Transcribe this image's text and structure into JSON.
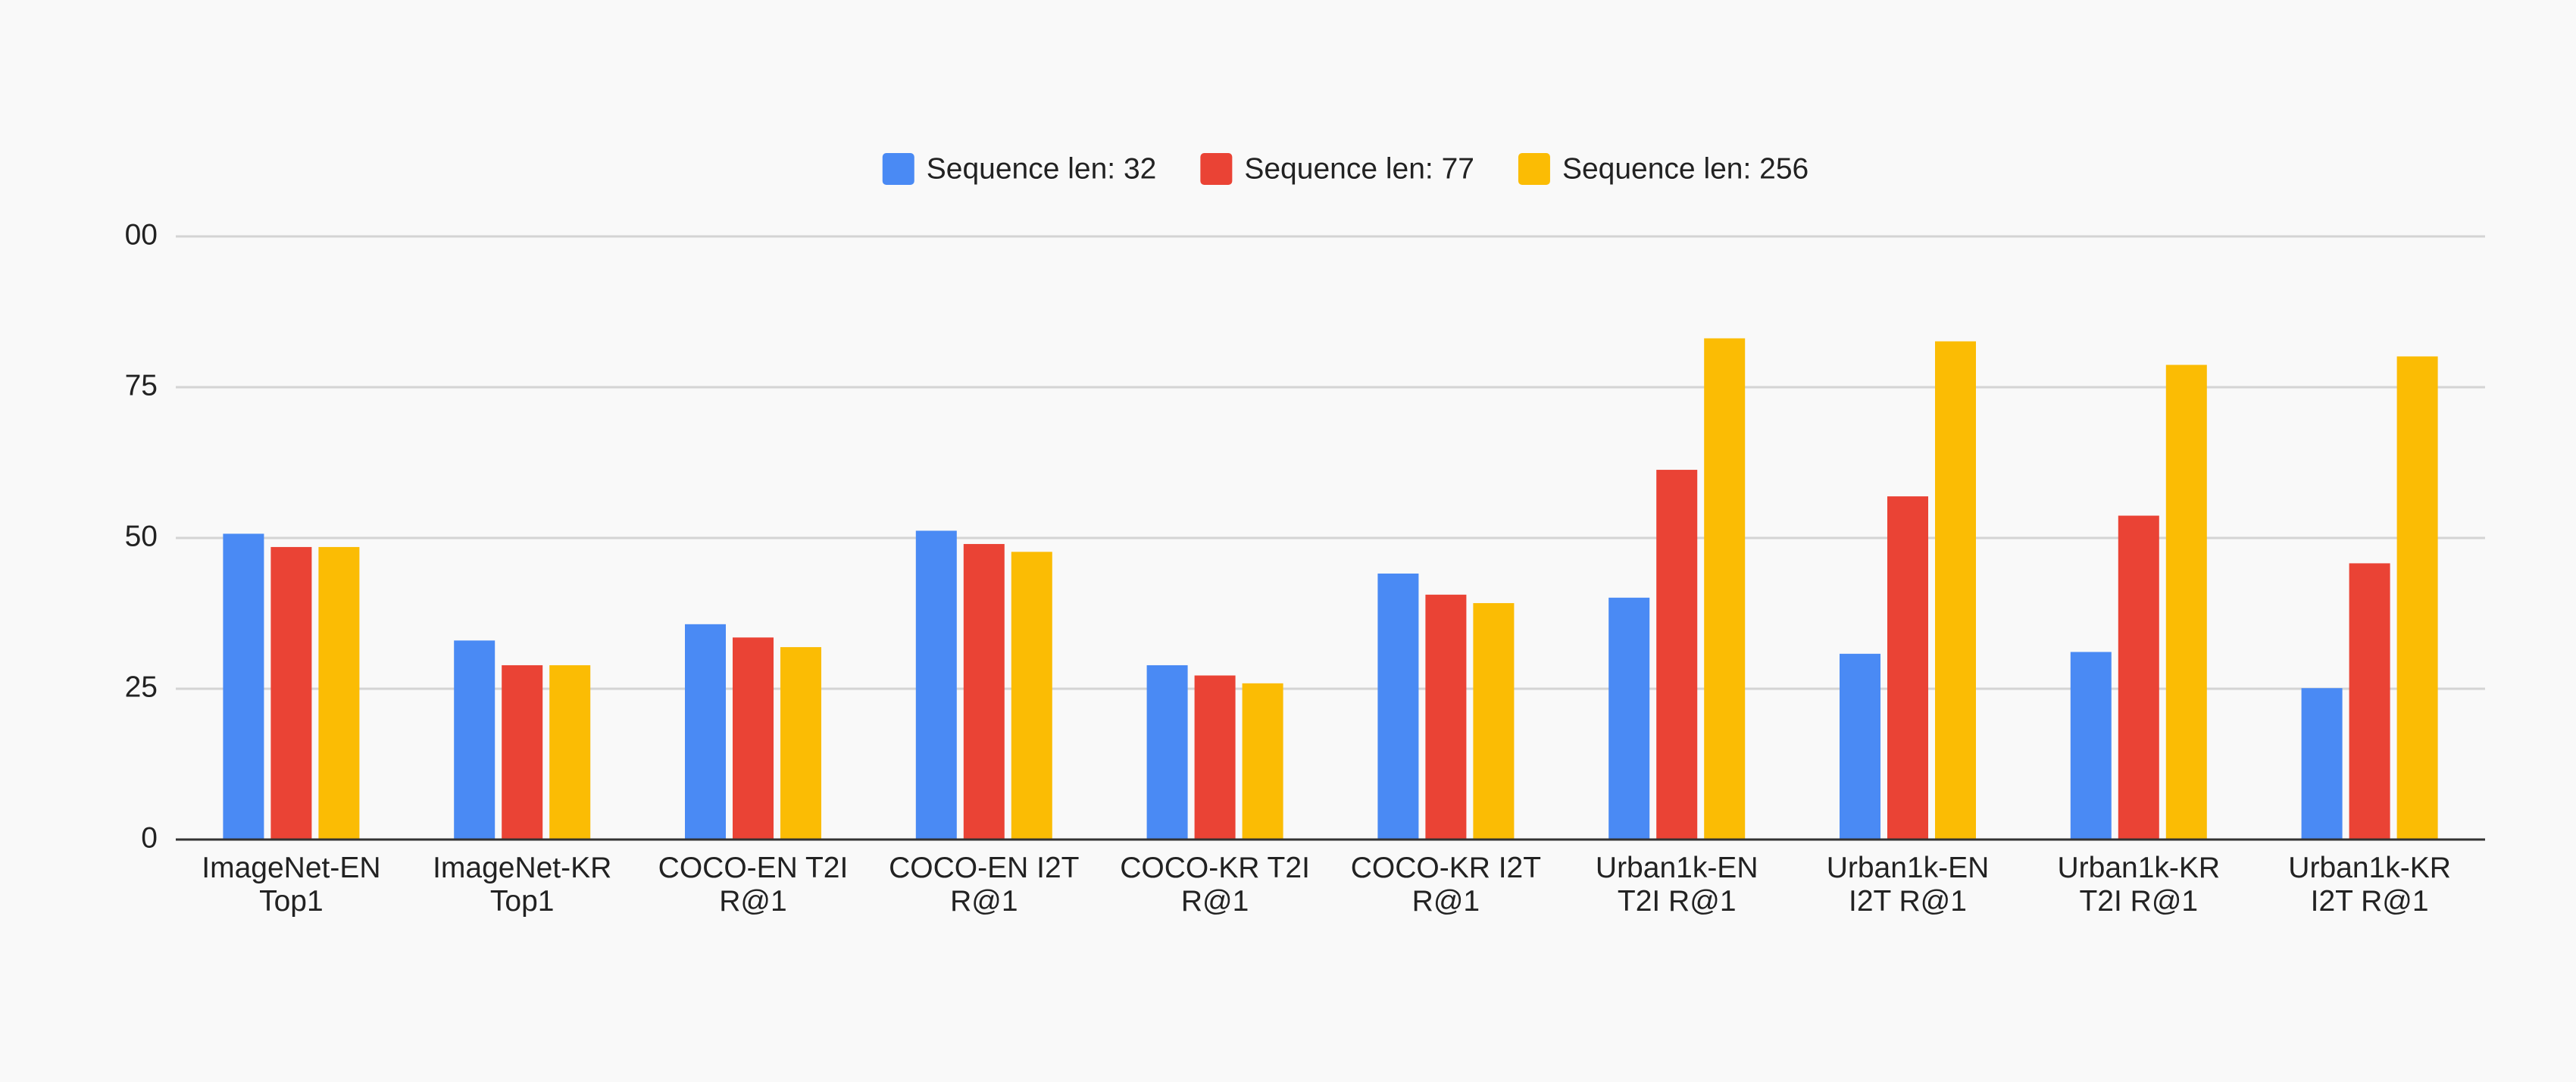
{
  "chart_data": {
    "type": "bar",
    "categories": [
      "ImageNet-EN Top1",
      "ImageNet-KR Top1",
      "COCO-EN T2I R@1",
      "COCO-EN I2T R@1",
      "COCO-KR T2I R@1",
      "COCO-KR I2T R@1",
      "Urban1k-EN T2I R@1",
      "Urban1k-EN I2T R@1",
      "Urban1k-KR T2I R@1",
      "Urban1k-KR I2T R@1"
    ],
    "series": [
      {
        "name": "Sequence len: 32",
        "color": "#4a8af4",
        "values": [
          50.7,
          33.0,
          35.7,
          51.2,
          28.9,
          44.1,
          40.1,
          30.8,
          31.1,
          25.1
        ]
      },
      {
        "name": "Sequence len: 77",
        "color": "#ea4335",
        "values": [
          48.5,
          28.9,
          33.5,
          49.0,
          27.2,
          40.6,
          61.3,
          56.9,
          53.7,
          45.8
        ]
      },
      {
        "name": "Sequence len: 256",
        "color": "#fbbc04",
        "values": [
          48.5,
          28.9,
          31.9,
          47.7,
          25.9,
          39.2,
          83.1,
          82.6,
          78.7,
          80.1
        ]
      }
    ],
    "ylim": [
      0,
      100
    ],
    "yticks": [
      0,
      25,
      50,
      75,
      {
        "value": 100,
        "label": "00"
      }
    ],
    "grid": true,
    "legend": "top"
  }
}
